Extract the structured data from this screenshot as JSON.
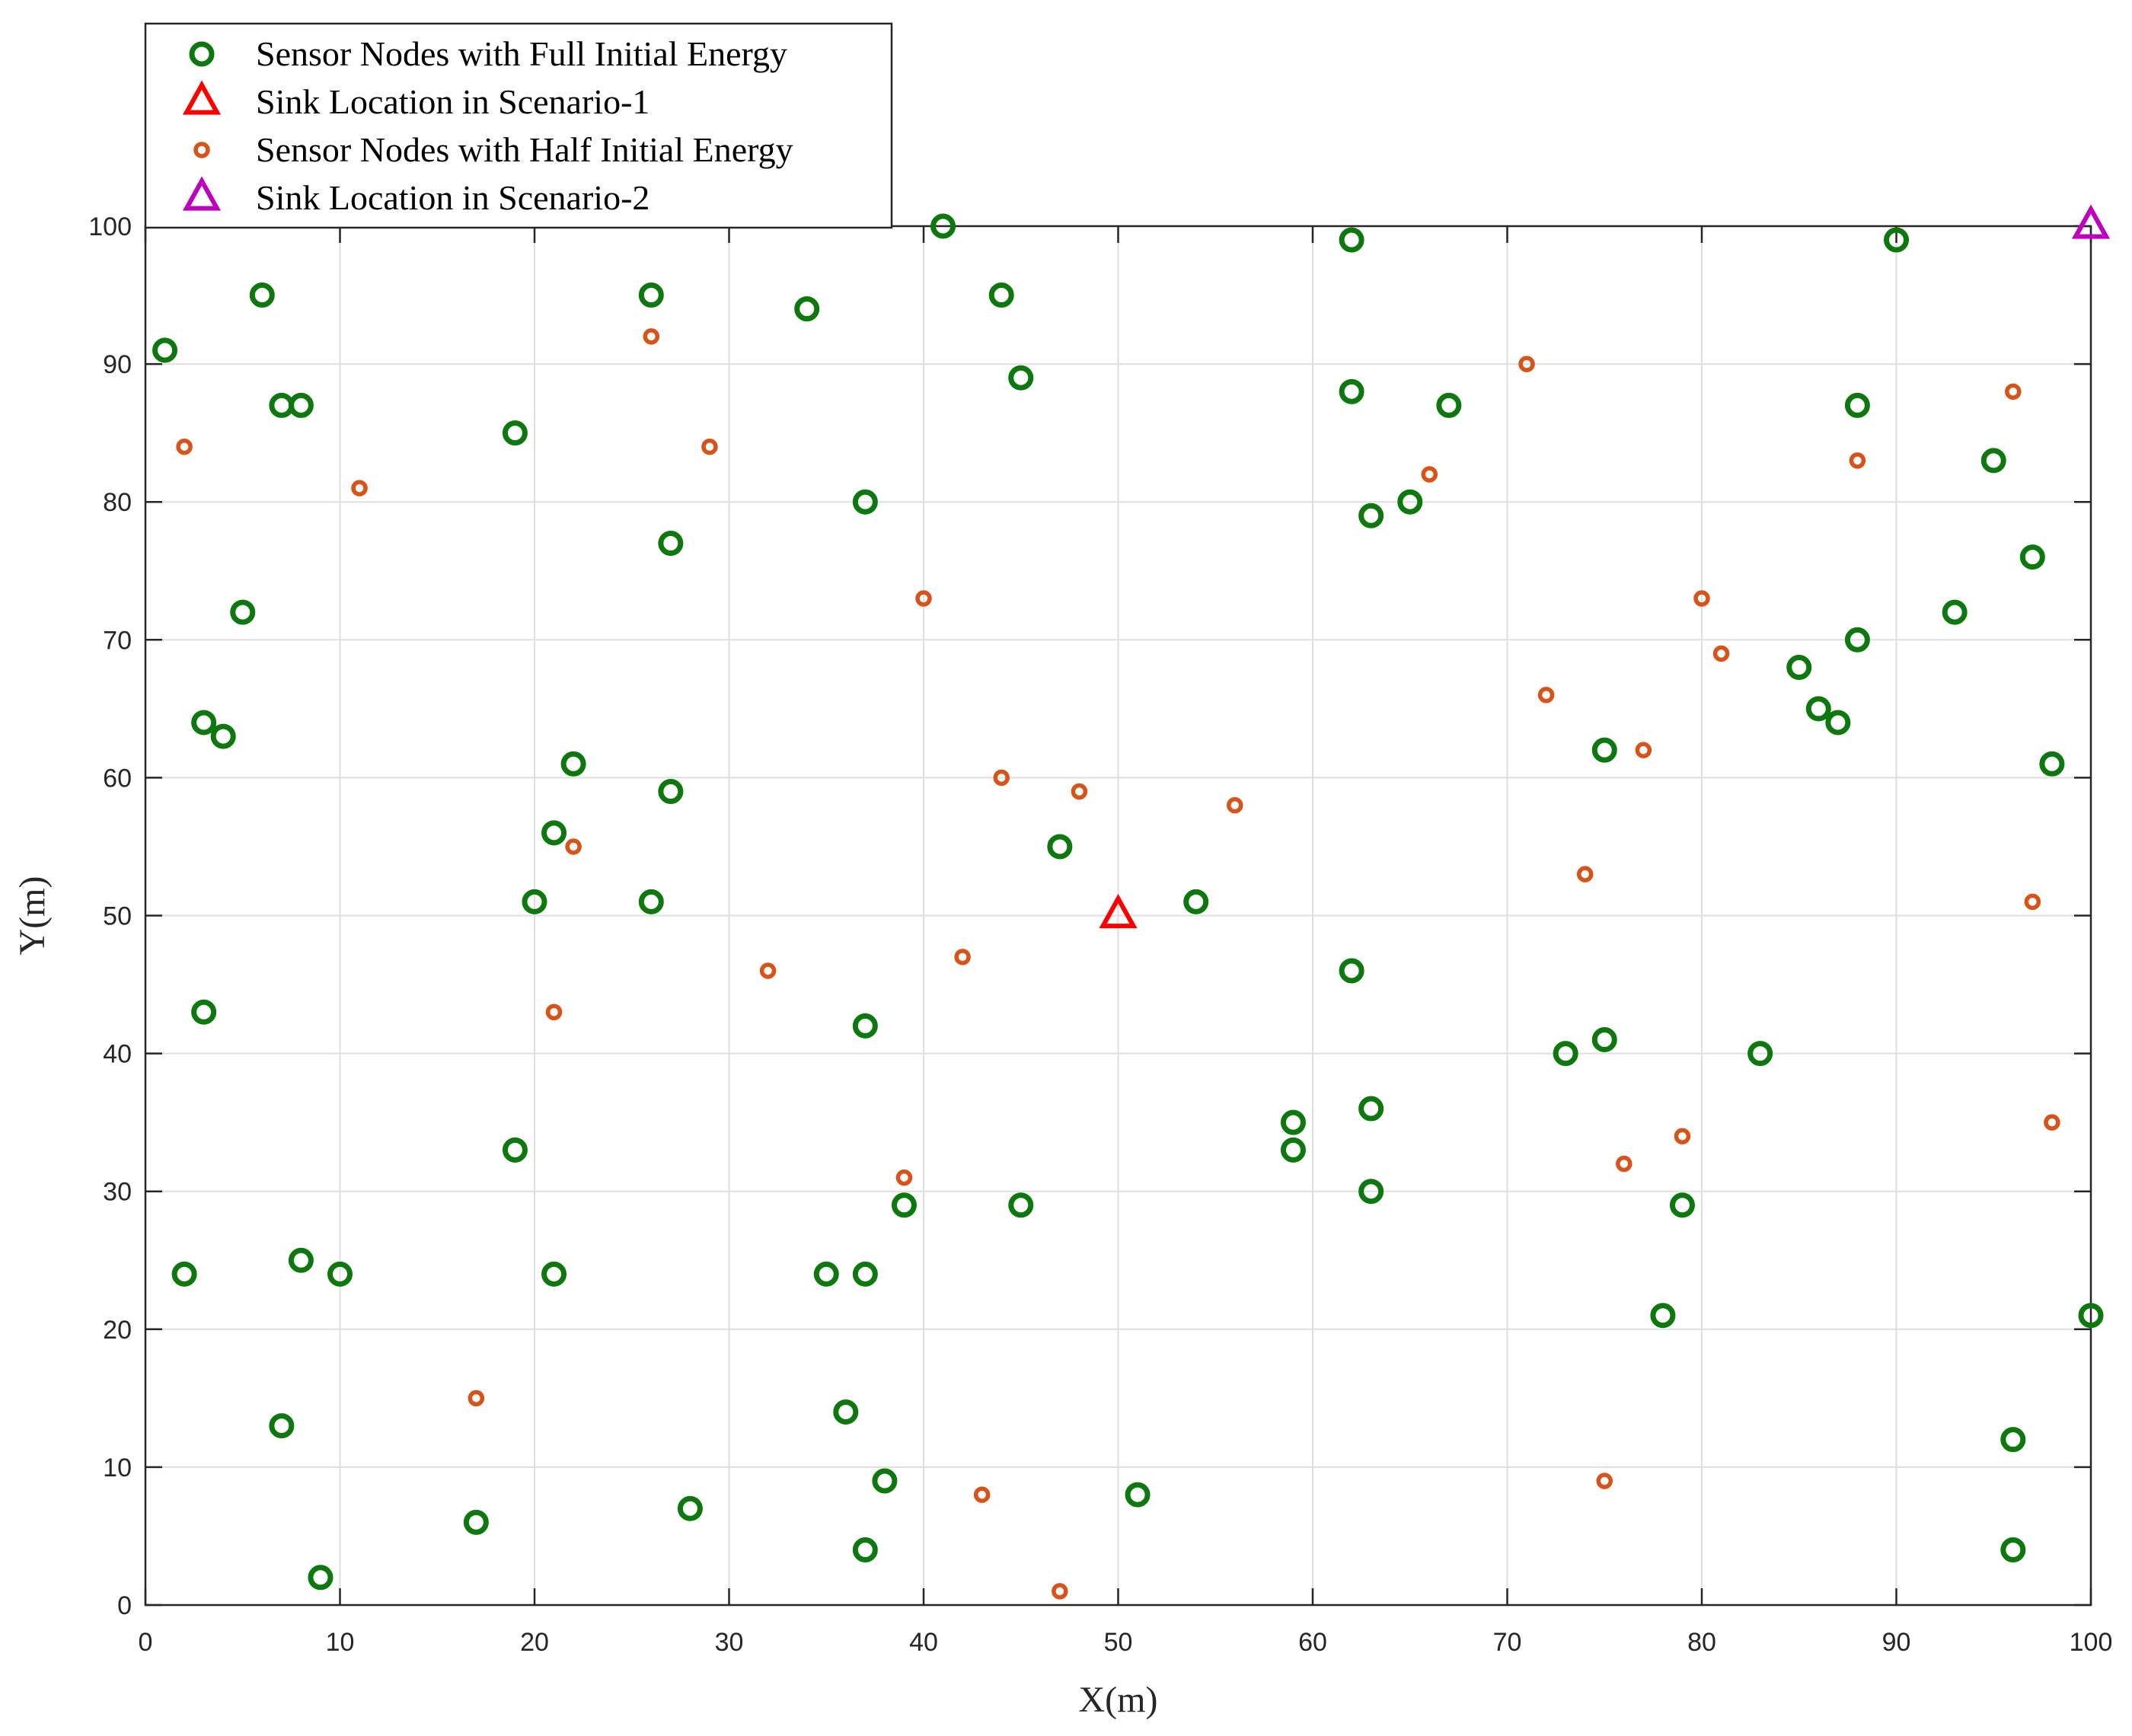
{
  "chart_data": {
    "type": "scatter",
    "title": "",
    "xlabel": "X(m)",
    "ylabel": "Y(m)",
    "xlim": [
      0,
      100
    ],
    "ylim": [
      0,
      100
    ],
    "xticks": [
      0,
      10,
      20,
      30,
      40,
      50,
      60,
      70,
      80,
      90,
      100
    ],
    "yticks": [
      0,
      10,
      20,
      30,
      40,
      50,
      60,
      70,
      80,
      90,
      100
    ],
    "grid": true,
    "legend_position": "top-left",
    "colors": {
      "full": "#0d780d",
      "half": "#d95319",
      "sink1": "#ff0000",
      "sink2": "#bf00bf"
    },
    "series": [
      {
        "name": "Sensor Nodes with Full Initial Energy",
        "marker": "circle",
        "color": "#0d780d",
        "points": [
          [
            1,
            91
          ],
          [
            6,
            95
          ],
          [
            7,
            87
          ],
          [
            8,
            87
          ],
          [
            19,
            85
          ],
          [
            26,
            95
          ],
          [
            34,
            94
          ],
          [
            41,
            100
          ],
          [
            44,
            95
          ],
          [
            45,
            89
          ],
          [
            62,
            99
          ],
          [
            90,
            99
          ],
          [
            62,
            88
          ],
          [
            67,
            87
          ],
          [
            88,
            87
          ],
          [
            95,
            83
          ],
          [
            37,
            80
          ],
          [
            65,
            80
          ],
          [
            63,
            79
          ],
          [
            27,
            77
          ],
          [
            97,
            76
          ],
          [
            5,
            72
          ],
          [
            93,
            72
          ],
          [
            88,
            70
          ],
          [
            85,
            68
          ],
          [
            86,
            65
          ],
          [
            87,
            64
          ],
          [
            3,
            64
          ],
          [
            4,
            63
          ],
          [
            22,
            61
          ],
          [
            98,
            61
          ],
          [
            75,
            62
          ],
          [
            27,
            59
          ],
          [
            21,
            56
          ],
          [
            47,
            55
          ],
          [
            20,
            51
          ],
          [
            26,
            51
          ],
          [
            54,
            51
          ],
          [
            62,
            46
          ],
          [
            3,
            43
          ],
          [
            37,
            42
          ],
          [
            75,
            41
          ],
          [
            73,
            40
          ],
          [
            83,
            40
          ],
          [
            63,
            36
          ],
          [
            59,
            35
          ],
          [
            59,
            33
          ],
          [
            19,
            33
          ],
          [
            63,
            30
          ],
          [
            39,
            29
          ],
          [
            45,
            29
          ],
          [
            79,
            29
          ],
          [
            2,
            24
          ],
          [
            8,
            25
          ],
          [
            10,
            24
          ],
          [
            21,
            24
          ],
          [
            35,
            24
          ],
          [
            37,
            24
          ],
          [
            78,
            21
          ],
          [
            100,
            21
          ],
          [
            36,
            14
          ],
          [
            7,
            13
          ],
          [
            96,
            12
          ],
          [
            38,
            9
          ],
          [
            51,
            8
          ],
          [
            28,
            7
          ],
          [
            17,
            6
          ],
          [
            37,
            4
          ],
          [
            96,
            4
          ],
          [
            9,
            2
          ]
        ]
      },
      {
        "name": "Sink Location in Scenario-1",
        "marker": "triangle",
        "color": "#ff0000",
        "points": [
          [
            50,
            50
          ]
        ]
      },
      {
        "name": "Sensor Nodes with Half Initial Energy",
        "marker": "circle-small",
        "color": "#d95319",
        "points": [
          [
            26,
            92
          ],
          [
            71,
            90
          ],
          [
            96,
            88
          ],
          [
            2,
            84
          ],
          [
            29,
            84
          ],
          [
            88,
            83
          ],
          [
            66,
            82
          ],
          [
            11,
            81
          ],
          [
            40,
            73
          ],
          [
            80,
            73
          ],
          [
            81,
            69
          ],
          [
            72,
            66
          ],
          [
            77,
            62
          ],
          [
            44,
            60
          ],
          [
            48,
            59
          ],
          [
            56,
            58
          ],
          [
            22,
            55
          ],
          [
            74,
            53
          ],
          [
            97,
            51
          ],
          [
            42,
            47
          ],
          [
            32,
            46
          ],
          [
            21,
            43
          ],
          [
            98,
            35
          ],
          [
            79,
            34
          ],
          [
            76,
            32
          ],
          [
            39,
            31
          ],
          [
            17,
            15
          ],
          [
            75,
            9
          ],
          [
            43,
            8
          ],
          [
            47,
            1
          ]
        ]
      },
      {
        "name": "Sink Location in Scenario-2",
        "marker": "triangle",
        "color": "#bf00bf",
        "points": [
          [
            100,
            100
          ]
        ]
      }
    ]
  }
}
